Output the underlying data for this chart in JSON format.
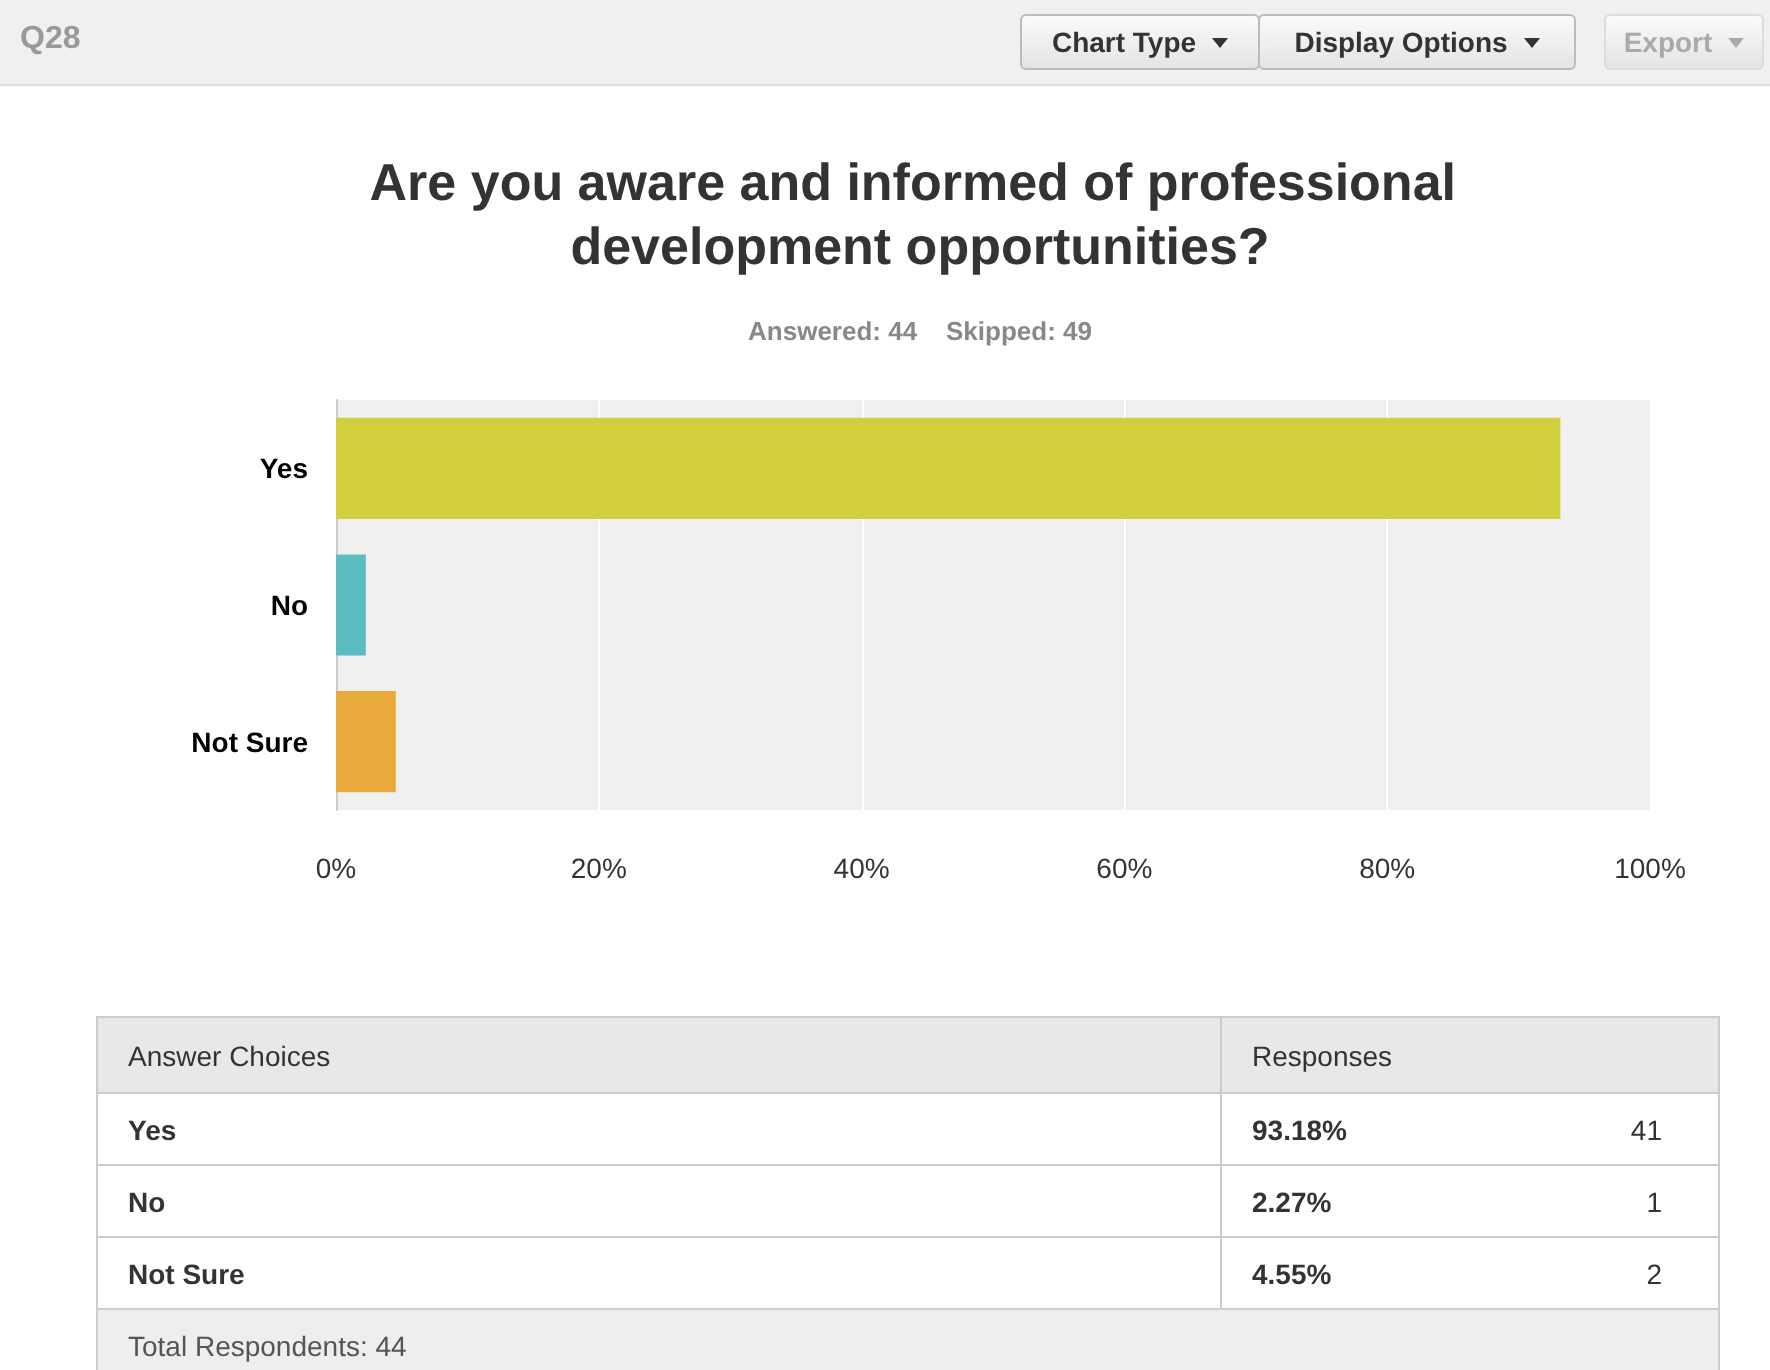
{
  "chart_data": {
    "type": "bar",
    "orientation": "horizontal",
    "title": "Are you aware and informed of professional development opportunities?",
    "subtitle": "Answered: 44    Skipped: 49",
    "categories": [
      "Yes",
      "No",
      "Not Sure"
    ],
    "values": [
      93.18,
      2.27,
      4.55
    ],
    "colors": [
      "#d2cf3f",
      "#5bbdc0",
      "#e8ab3b"
    ],
    "xlim": [
      0,
      100
    ],
    "xticks": [
      {
        "value": 0,
        "label": "0%"
      },
      {
        "value": 20,
        "label": "20%"
      },
      {
        "value": 40,
        "label": "40%"
      },
      {
        "value": 60,
        "label": "60%"
      },
      {
        "value": 80,
        "label": "80%"
      },
      {
        "value": 100,
        "label": "100%"
      }
    ],
    "grid": "x",
    "annotations": [
      "Q28",
      "Chart Type",
      "Display Options",
      "Export",
      "Answer Choices",
      "Responses",
      "Total Respondents: 44",
      "93.18%",
      "41",
      "2.27%",
      "1",
      "4.55%",
      "2"
    ]
  }
}
